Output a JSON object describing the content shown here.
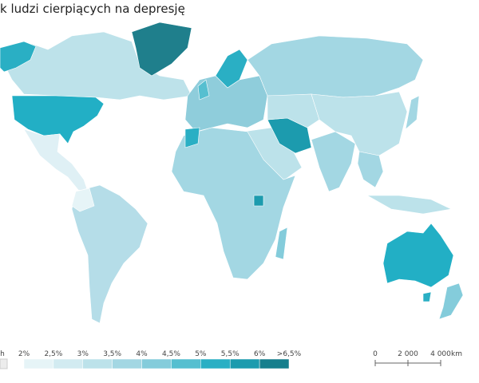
{
  "title": "k ludzi cierpiących na depresję",
  "legend": {
    "no_data_label": "h",
    "labels": [
      "2%",
      "2,5%",
      "3%",
      "3,5%",
      "4%",
      "4,5%",
      "5%",
      "5,5%",
      "6%",
      ">6,5%"
    ],
    "colors": [
      "#e6f4f7",
      "#d2ebf1",
      "#bce2ea",
      "#a3d7e3",
      "#84ccdb",
      "#56bfd0",
      "#2aafc4",
      "#1c9bae",
      "#167f8d"
    ]
  },
  "scale_bar": {
    "labels": [
      "0",
      "2 000",
      "4 000"
    ],
    "unit": "km"
  }
}
